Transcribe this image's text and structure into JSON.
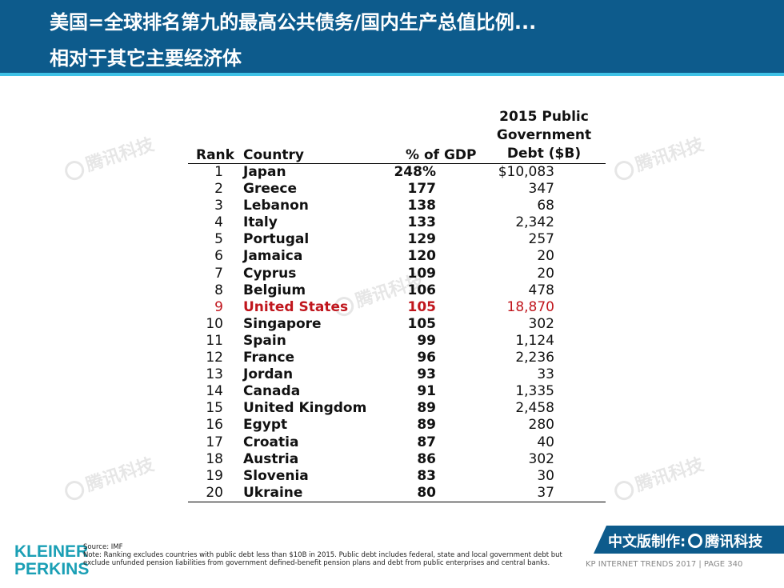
{
  "header": {
    "title_line1": "美国=全球排名第九的最高公共债务/国内生产总值比例...",
    "title_line2": "相对于其它主要经济体"
  },
  "watermark": {
    "text": "腾讯科技"
  },
  "table": {
    "columns": {
      "rank": "Rank",
      "country": "Country",
      "gdp": "% of GDP",
      "debt_line1": "2015 Public",
      "debt_line2": "Government",
      "debt_line3": "Debt ($B)"
    },
    "rows": [
      {
        "rank": "1",
        "country": "Japan",
        "gdp": "248%",
        "debt": "$10,083"
      },
      {
        "rank": "2",
        "country": "Greece",
        "gdp": "177",
        "debt": "347"
      },
      {
        "rank": "3",
        "country": "Lebanon",
        "gdp": "138",
        "debt": "68"
      },
      {
        "rank": "4",
        "country": "Italy",
        "gdp": "133",
        "debt": "2,342"
      },
      {
        "rank": "5",
        "country": "Portugal",
        "gdp": "129",
        "debt": "257"
      },
      {
        "rank": "6",
        "country": "Jamaica",
        "gdp": "120",
        "debt": "20"
      },
      {
        "rank": "7",
        "country": "Cyprus",
        "gdp": "109",
        "debt": "20"
      },
      {
        "rank": "8",
        "country": "Belgium",
        "gdp": "106",
        "debt": "478"
      },
      {
        "rank": "9",
        "country": "United States",
        "gdp": "105",
        "debt": "18,870"
      },
      {
        "rank": "10",
        "country": "Singapore",
        "gdp": "105",
        "debt": "302"
      },
      {
        "rank": "11",
        "country": "Spain",
        "gdp": "99",
        "debt": "1,124"
      },
      {
        "rank": "12",
        "country": "France",
        "gdp": "96",
        "debt": "2,236"
      },
      {
        "rank": "13",
        "country": "Jordan",
        "gdp": "93",
        "debt": "33"
      },
      {
        "rank": "14",
        "country": "Canada",
        "gdp": "91",
        "debt": "1,335"
      },
      {
        "rank": "15",
        "country": "United Kingdom",
        "gdp": "89",
        "debt": "2,458"
      },
      {
        "rank": "16",
        "country": "Egypt",
        "gdp": "89",
        "debt": "280"
      },
      {
        "rank": "17",
        "country": "Croatia",
        "gdp": "87",
        "debt": "40"
      },
      {
        "rank": "18",
        "country": "Austria",
        "gdp": "86",
        "debt": "302"
      },
      {
        "rank": "19",
        "country": "Slovenia",
        "gdp": "83",
        "debt": "30"
      },
      {
        "rank": "20",
        "country": "Ukraine",
        "gdp": "80",
        "debt": "37"
      }
    ],
    "highlight_color": "#c0161d"
  },
  "footer": {
    "logo_line1": "KLEINER",
    "logo_line2": "PERKINS",
    "source": "Source: IMF",
    "note": "Note: Ranking excludes countries with public debt less than $10B in 2015. Public debt includes federal, state and local government debt but exclude unfunded pension liabilities from government defined-benefit pension plans and debt from public enterprises and central banks.",
    "badge_prefix": "中文版制作:",
    "badge_brand": "腾讯科技",
    "trend_label": "KP INTERNET TRENDS 2017  |  PAGE 340"
  },
  "colors": {
    "header_bg": "#0d5b8c",
    "accent_line": "#3ec1e6",
    "logo": "#1a9fb5"
  }
}
